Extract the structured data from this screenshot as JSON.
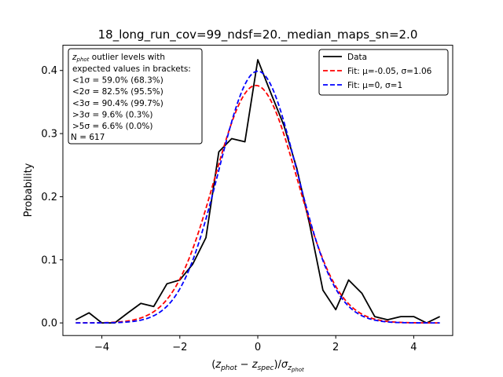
{
  "chart_data": {
    "type": "line",
    "title": "18_long_run_cov=99_ndsf=20._median_maps_sn=2.0",
    "xlabel": "(z_phot − z_spec)/σ_z_phot",
    "ylabel": "Probability",
    "xlim": [
      -5,
      5
    ],
    "ylim": [
      -0.02,
      0.44
    ],
    "xticks": [
      -4,
      -2,
      0,
      2,
      4
    ],
    "yticks": [
      0.0,
      0.1,
      0.2,
      0.3,
      0.4
    ],
    "xtick_labels": [
      "−4",
      "−2",
      "0",
      "2",
      "4"
    ],
    "ytick_labels": [
      "0.0",
      "0.1",
      "0.2",
      "0.3",
      "0.4"
    ],
    "grid": false,
    "legend_position": "top-right",
    "stats_box": {
      "position": "top-left",
      "lines": [
        "z_phot outlier levels with",
        "expected values in brackets:",
        "<1σ = 59.0% (68.3%)",
        "<2σ = 82.5% (95.5%)",
        "<3σ = 90.4% (99.7%)",
        ">3σ = 9.6% (0.3%)",
        ">5σ = 6.6% (0.0%)",
        "N = 617"
      ]
    },
    "series": [
      {
        "name": "Data",
        "color": "#000000",
        "style": "solid",
        "x": [
          -4.67,
          -4.33,
          -4.0,
          -3.67,
          -3.33,
          -3.0,
          -2.67,
          -2.33,
          -2.0,
          -1.67,
          -1.33,
          -1.0,
          -0.67,
          -0.33,
          0.0,
          0.33,
          0.67,
          1.0,
          1.33,
          1.67,
          2.0,
          2.33,
          2.67,
          3.0,
          3.33,
          3.67,
          4.0,
          4.33,
          4.67
        ],
        "y": [
          0.005,
          0.016,
          0.0,
          0.0,
          0.016,
          0.031,
          0.026,
          0.062,
          0.068,
          0.093,
          0.135,
          0.271,
          0.292,
          0.287,
          0.417,
          0.365,
          0.313,
          0.245,
          0.156,
          0.052,
          0.021,
          0.068,
          0.047,
          0.01,
          0.005,
          0.01,
          0.01,
          0.0,
          0.01
        ]
      },
      {
        "name": "Fit: μ=-0.05, σ=1.06",
        "color": "#ff0000",
        "style": "dashed",
        "mu": -0.05,
        "sigma": 1.06
      },
      {
        "name": "Fit: μ=0, σ=1",
        "color": "#0000ff",
        "style": "dashed",
        "mu": 0,
        "sigma": 1
      }
    ]
  }
}
